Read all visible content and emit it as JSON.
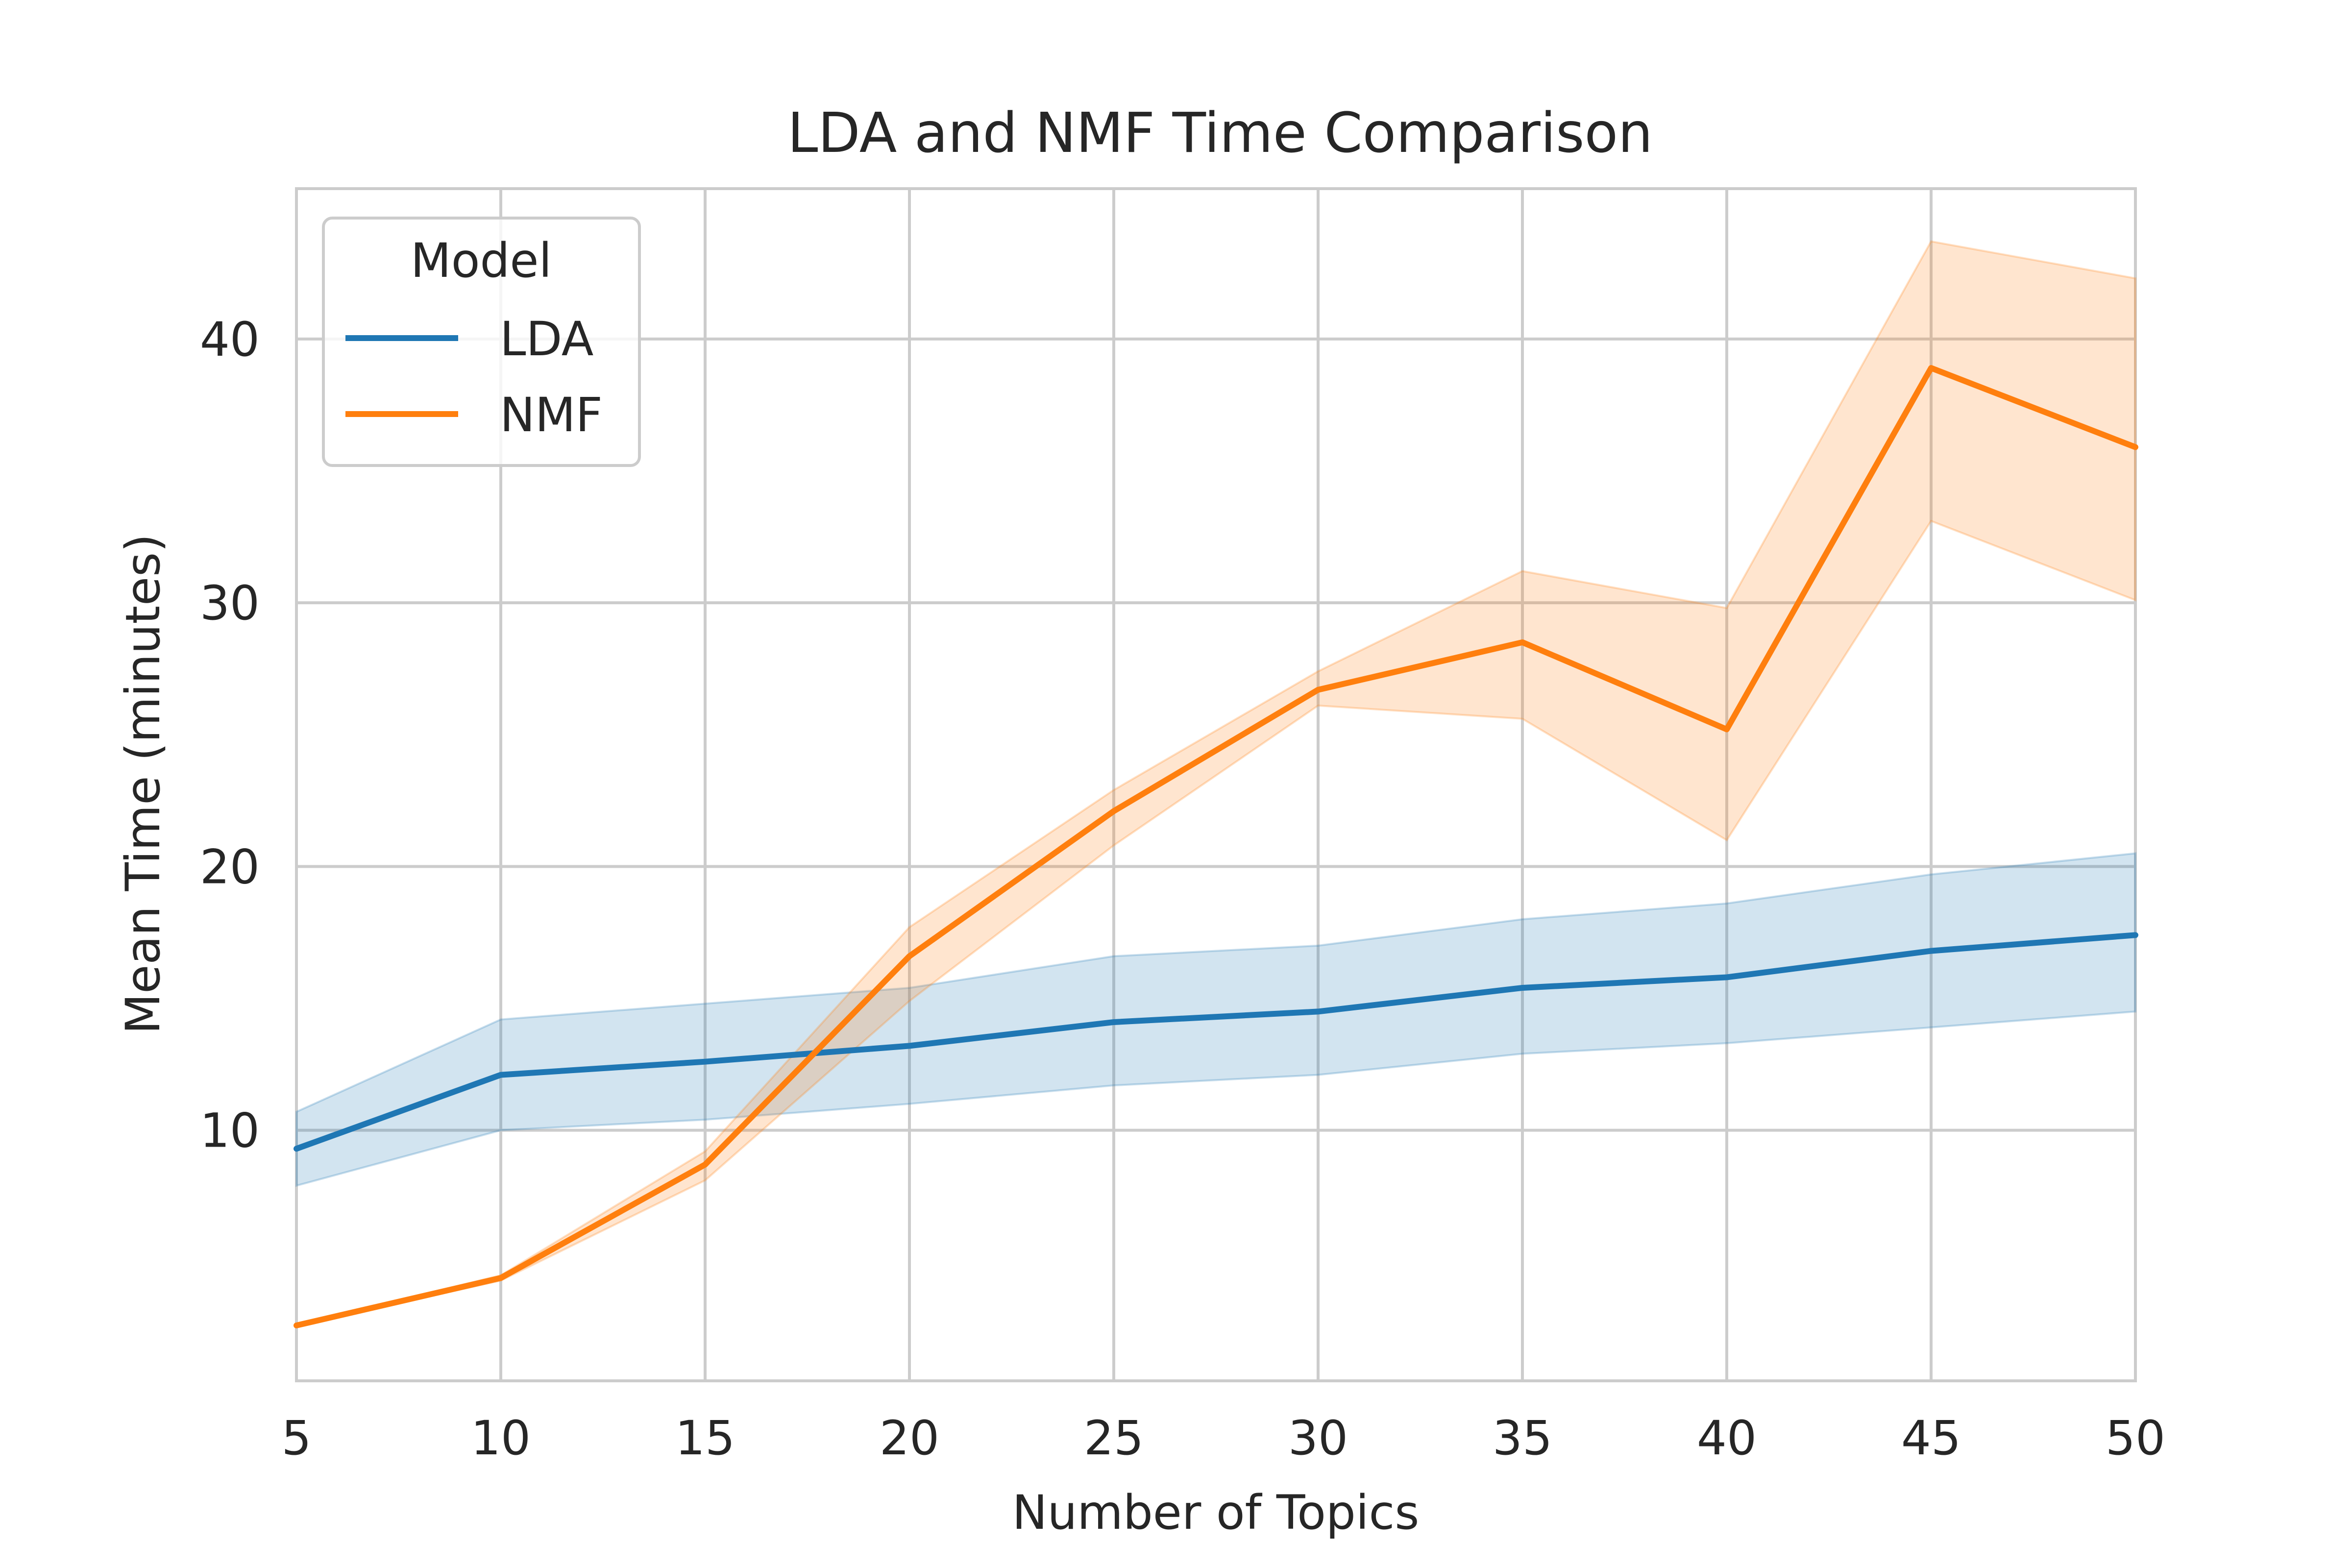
{
  "chart_data": {
    "type": "line",
    "title": "LDA and NMF Time Comparison",
    "xlabel": "Number of Topics",
    "ylabel": "Mean Time (minutes)",
    "x": [
      5,
      10,
      15,
      20,
      25,
      30,
      35,
      40,
      45,
      50
    ],
    "xlim": [
      5,
      50
    ],
    "ylim": [
      0.5,
      45.7
    ],
    "xticks": [
      5,
      10,
      15,
      20,
      25,
      30,
      35,
      40,
      45,
      50
    ],
    "yticks": [
      10,
      20,
      30,
      40
    ],
    "grid": true,
    "legend": {
      "title": "Model",
      "placement": "top-left"
    },
    "series": [
      {
        "name": "LDA",
        "color": "#1f77b4",
        "values": [
          9.3,
          12.1,
          12.6,
          13.2,
          14.1,
          14.5,
          15.4,
          15.8,
          16.8,
          17.4
        ],
        "ci_low": [
          7.9,
          10.0,
          10.4,
          11.0,
          11.7,
          12.1,
          12.9,
          13.3,
          13.9,
          14.5
        ],
        "ci_high": [
          10.7,
          14.2,
          14.8,
          15.4,
          16.6,
          17.0,
          18.0,
          18.6,
          19.7,
          20.5
        ]
      },
      {
        "name": "NMF",
        "color": "#ff7f0e",
        "values": [
          2.6,
          4.4,
          8.7,
          16.6,
          22.1,
          26.7,
          28.5,
          25.2,
          38.9,
          35.9
        ],
        "ci_low": [
          2.6,
          4.3,
          8.1,
          14.9,
          20.8,
          26.1,
          25.6,
          21.0,
          33.1,
          30.1
        ],
        "ci_high": [
          2.6,
          4.5,
          9.2,
          17.7,
          22.9,
          27.4,
          31.2,
          29.8,
          43.7,
          42.3
        ]
      }
    ]
  }
}
